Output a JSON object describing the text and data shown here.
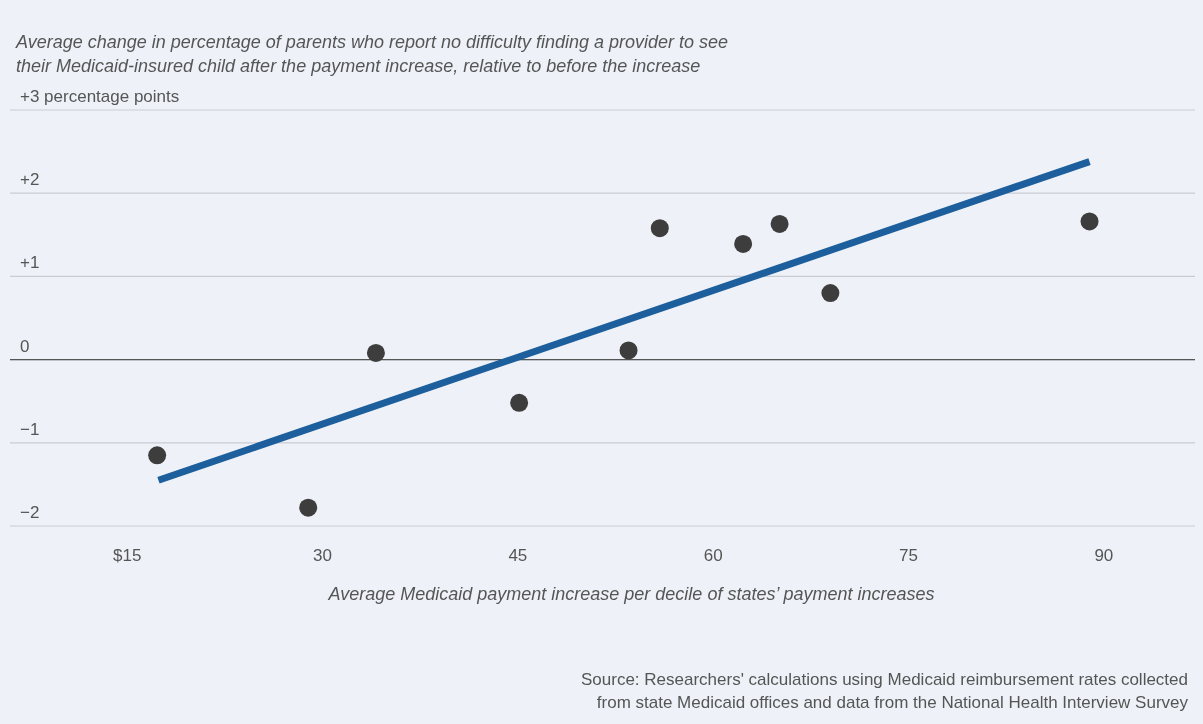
{
  "chart_data": {
    "type": "scatter",
    "title": "Average change in percentage of parents who report no difficulty finding a provider to see\ntheir Medicaid-insured child after the payment increase, relative to before the increase",
    "xlabel": "Average Medicaid payment increase per decile of states’ payment increases",
    "annotations": [
      "Source: Researchers' calculations using Medicaid reimbursement rates collected\nfrom state Medicaid offices and data from the National Health Interview Survey"
    ],
    "xlim": [
      6,
      97
    ],
    "xticks": [
      {
        "value": 15,
        "label": "$15"
      },
      30,
      45,
      60,
      75,
      90
    ],
    "ylim": [
      -2,
      3
    ],
    "yticks": [
      {
        "value": -2,
        "label": "−2"
      },
      {
        "value": -1,
        "label": "−1"
      },
      0,
      {
        "value": 1,
        "label": "+1"
      },
      {
        "value": 2,
        "label": "+2"
      },
      {
        "value": 3,
        "label": "+3 percentage points"
      }
    ],
    "grid": "y",
    "marker": "circle",
    "ref_lines": [
      {
        "axis": "y",
        "value": 0,
        "color": "#555555"
      }
    ],
    "series": [
      {
        "color": "#3d3d3d",
        "x": [
          17.3,
          28.9,
          34.1,
          45.1,
          53.5,
          55.9,
          62.3,
          65.1,
          69.0,
          88.9
        ],
        "values": [
          -1.15,
          -1.78,
          0.08,
          -0.52,
          0.11,
          1.58,
          1.39,
          1.63,
          0.8,
          1.66
        ]
      },
      {
        "type": "line",
        "color": "#1c5f9c",
        "marker": "none",
        "x": [
          17.4,
          88.9
        ],
        "values": [
          -1.45,
          2.38
        ]
      }
    ]
  }
}
